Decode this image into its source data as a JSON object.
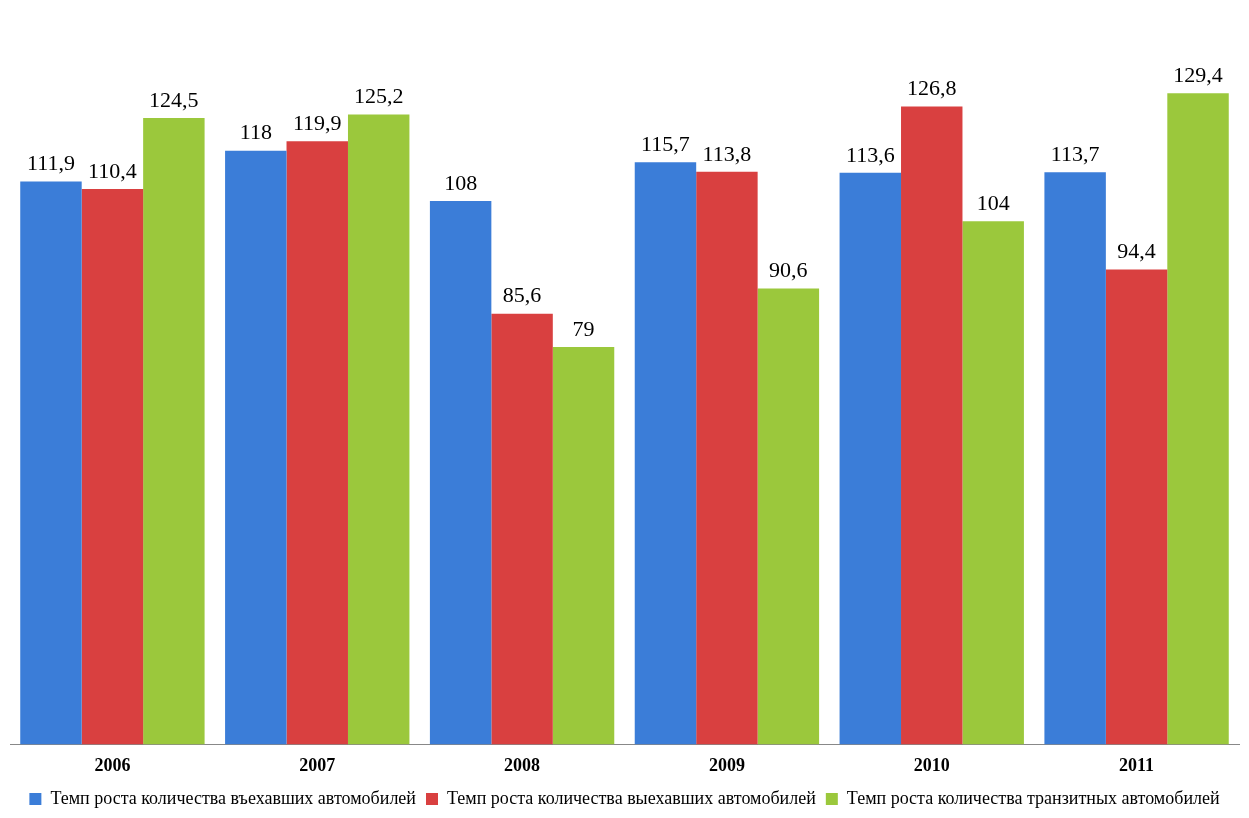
{
  "chart_data": {
    "type": "bar",
    "categories": [
      "2006",
      "2007",
      "2008",
      "2009",
      "2010",
      "2011"
    ],
    "series": [
      {
        "name": "Темп роста количества въехавших автомобилей",
        "color": "#3b7dd8",
        "values": [
          111.9,
          118,
          108,
          115.7,
          113.6,
          113.7
        ],
        "value_labels": [
          "111,9",
          "118",
          "108",
          "115,7",
          "113,6",
          "113,7"
        ]
      },
      {
        "name": "Темп роста количества выехавших автомобилей",
        "color": "#d94040",
        "values": [
          110.4,
          119.9,
          85.6,
          113.8,
          126.8,
          94.4
        ],
        "value_labels": [
          "110,4",
          "119,9",
          "85,6",
          "113,8",
          "126,8",
          "94,4"
        ]
      },
      {
        "name": "Темп роста количества транзитных автомобилей",
        "color": "#9bc83c",
        "values": [
          124.5,
          125.2,
          79,
          90.6,
          104,
          129.4
        ],
        "value_labels": [
          "124,5",
          "125,2",
          "79",
          "90,6",
          "104",
          "129,4"
        ]
      }
    ],
    "legend": "bottom",
    "grid": false,
    "tick_labels": "x"
  }
}
